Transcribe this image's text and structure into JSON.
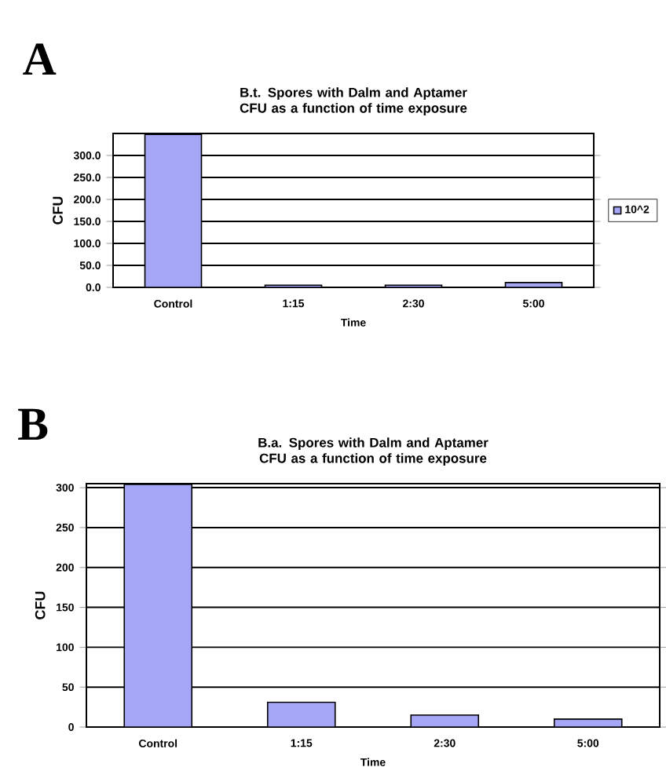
{
  "chart_data": [
    {
      "type": "bar",
      "title": "B.t. Spores with Dalm and Aptamer CFU as a function of time exposure",
      "xlabel": "Time",
      "ylabel": "CFU",
      "categories": [
        "Control",
        "1:15",
        "2:30",
        "5:00"
      ],
      "series": [
        {
          "name": "10^2",
          "color": "#a6a6f7",
          "values": [
            348,
            5,
            5,
            11
          ]
        }
      ],
      "ylim": [
        0,
        350
      ],
      "yticks": [
        {
          "value": 0,
          "label": "0.0"
        },
        {
          "value": 50,
          "label": "50.0"
        },
        {
          "value": 100,
          "label": "100.0"
        },
        {
          "value": 150,
          "label": "150.0"
        },
        {
          "value": 200,
          "label": "200.0"
        },
        {
          "value": 250,
          "label": "250.0"
        },
        {
          "value": 300,
          "label": "300.0"
        }
      ],
      "grid": "y",
      "legend": "right",
      "annotations": [
        "A"
      ]
    },
    {
      "type": "bar",
      "title": "B.a. Spores with Dalm and Aptamer CFU as a function of time exposure",
      "xlabel": "Time",
      "ylabel": "CFU",
      "categories": [
        "Control",
        "1:15",
        "2:30",
        "5:00"
      ],
      "series": [
        {
          "color": "#a6a6f7",
          "values": [
            304,
            31,
            15,
            10
          ]
        }
      ],
      "ylim": [
        0,
        305
      ],
      "yticks": [
        0,
        50,
        100,
        150,
        200,
        250,
        300
      ],
      "grid": "y",
      "annotations": [
        "B"
      ]
    }
  ]
}
